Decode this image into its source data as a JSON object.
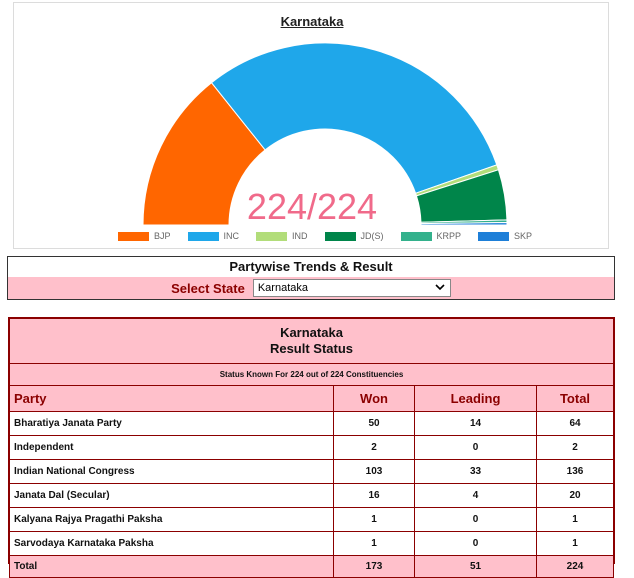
{
  "chart_data": {
    "type": "pie",
    "title": "Karnataka",
    "center_label": "224/224",
    "categories": [
      "BJP",
      "INC",
      "IND",
      "JD(S)",
      "KRPP",
      "SKP"
    ],
    "values": [
      64,
      136,
      2,
      20,
      1,
      1
    ],
    "colors": [
      "#ff6600",
      "#1fa7ea",
      "#b2dd7a",
      "#00854a",
      "#33b18c",
      "#1e7fd8"
    ],
    "legend_position": "bottom"
  },
  "trends": {
    "title": "Partywise Trends & Result",
    "select_label": "Select State",
    "selected_state": "Karnataka"
  },
  "result": {
    "state": "Karnataka",
    "subtitle": "Result Status",
    "status_text": "Status Known For 224 out of 224 Constituencies",
    "columns": [
      "Party",
      "Won",
      "Leading",
      "Total"
    ],
    "rows": [
      {
        "party": "Bharatiya Janata Party",
        "won": "50",
        "leading": "14",
        "total": "64"
      },
      {
        "party": "Independent",
        "won": "2",
        "leading": "0",
        "total": "2"
      },
      {
        "party": "Indian National Congress",
        "won": "103",
        "leading": "33",
        "total": "136"
      },
      {
        "party": "Janata Dal (Secular)",
        "won": "16",
        "leading": "4",
        "total": "20"
      },
      {
        "party": "Kalyana Rajya Pragathi Paksha",
        "won": "1",
        "leading": "0",
        "total": "1"
      },
      {
        "party": "Sarvodaya Karnataka Paksha",
        "won": "1",
        "leading": "0",
        "total": "1"
      }
    ],
    "total": {
      "party": "Total",
      "won": "173",
      "leading": "51",
      "total": "224"
    }
  }
}
